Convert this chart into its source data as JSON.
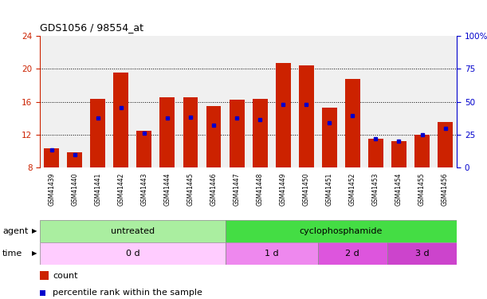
{
  "title": "GDS1056 / 98554_at",
  "samples": [
    "GSM41439",
    "GSM41440",
    "GSM41441",
    "GSM41442",
    "GSM41443",
    "GSM41444",
    "GSM41445",
    "GSM41446",
    "GSM41447",
    "GSM41448",
    "GSM41449",
    "GSM41450",
    "GSM41451",
    "GSM41452",
    "GSM41453",
    "GSM41454",
    "GSM41455",
    "GSM41456"
  ],
  "bar_heights": [
    10.3,
    9.8,
    16.3,
    19.5,
    12.5,
    16.5,
    16.5,
    15.5,
    16.2,
    16.3,
    20.7,
    20.4,
    15.3,
    18.8,
    11.5,
    11.2,
    12.0,
    13.5
  ],
  "blue_positions": [
    10.1,
    9.6,
    14.0,
    15.3,
    12.2,
    14.0,
    14.1,
    13.1,
    14.0,
    13.8,
    15.7,
    15.7,
    13.4,
    14.3,
    11.5,
    11.2,
    12.0,
    12.8
  ],
  "ymin": 8,
  "ymax": 24,
  "yticks_left": [
    8,
    12,
    16,
    20,
    24
  ],
  "yticks_right": [
    0,
    25,
    50,
    75,
    100
  ],
  "bar_color": "#cc2200",
  "blue_color": "#0000cc",
  "bar_width": 0.65,
  "agent_labels": [
    {
      "label": "untreated",
      "start": 0,
      "end": 7,
      "color": "#aaeea0"
    },
    {
      "label": "cyclophosphamide",
      "start": 8,
      "end": 17,
      "color": "#44dd44"
    }
  ],
  "time_labels": [
    {
      "label": "0 d",
      "start": 0,
      "end": 7,
      "color": "#ffccff"
    },
    {
      "label": "1 d",
      "start": 8,
      "end": 11,
      "color": "#ee88ee"
    },
    {
      "label": "2 d",
      "start": 12,
      "end": 14,
      "color": "#dd55dd"
    },
    {
      "label": "3 d",
      "start": 15,
      "end": 17,
      "color": "#cc44cc"
    }
  ],
  "legend_count_label": "count",
  "legend_pct_label": "percentile rank within the sample",
  "xlabel_agent": "agent",
  "xlabel_time": "time",
  "plot_bg": "#f0f0f0",
  "right_axis_color": "#0000cc",
  "left_axis_color": "#cc2200",
  "grid_yticks": [
    12,
    16,
    20
  ]
}
